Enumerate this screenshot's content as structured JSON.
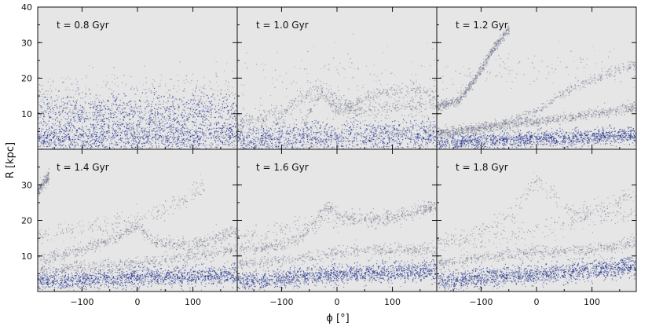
{
  "figure": {
    "xlabel": "ϕ [°]",
    "ylabel": "R [kpc]"
  },
  "colors": {
    "panel_bg": "#e6e6e6",
    "dense": "#1f2f8a",
    "sparse": "#6b6f86",
    "frame": "#111111"
  },
  "chart_data": [
    {
      "type": "scatter",
      "title": "t = 0.8 Gyr",
      "xlim": [
        -180,
        180
      ],
      "ylim": [
        0,
        40
      ],
      "xticks": [
        -100,
        0,
        100
      ],
      "yticks": [
        10,
        20,
        30,
        40
      ],
      "features": [
        {
          "kind": "band",
          "density": 2.4,
          "spread": 5,
          "points": [
            [
              -180,
              3
            ],
            [
              0,
              3.5
            ],
            [
              180,
              4
            ]
          ]
        },
        {
          "kind": "band",
          "density": 1.6,
          "spread": 6,
          "points": [
            [
              -180,
              10
            ],
            [
              0,
              10
            ],
            [
              180,
              11
            ]
          ]
        },
        {
          "kind": "band",
          "density": 0.6,
          "spread": 8,
          "points": [
            [
              -180,
              15
            ],
            [
              0,
              15
            ],
            [
              180,
              16
            ]
          ]
        }
      ]
    },
    {
      "type": "scatter",
      "title": "t = 1.0 Gyr",
      "xlim": [
        -180,
        180
      ],
      "ylim": [
        0,
        40
      ],
      "xticks": [
        -100,
        0,
        100
      ],
      "yticks": [
        10,
        20,
        30,
        40
      ],
      "features": [
        {
          "kind": "band",
          "density": 2.4,
          "spread": 5,
          "points": [
            [
              -180,
              3
            ],
            [
              0,
              3.5
            ],
            [
              180,
              4
            ]
          ]
        },
        {
          "kind": "band",
          "density": 1.0,
          "spread": 3,
          "points": [
            [
              -180,
              7
            ],
            [
              -100,
              10
            ],
            [
              -40,
              17
            ],
            [
              -20,
              16
            ],
            [
              20,
              11
            ],
            [
              100,
              12
            ],
            [
              180,
              13
            ]
          ]
        },
        {
          "kind": "band",
          "density": 0.6,
          "spread": 2,
          "points": [
            [
              -60,
              8
            ],
            [
              -30,
              16
            ],
            [
              0,
              11
            ],
            [
              80,
              16
            ],
            [
              140,
              17
            ],
            [
              180,
              16
            ]
          ]
        },
        {
          "kind": "band",
          "density": 0.2,
          "spread": 8,
          "points": [
            [
              -180,
              20
            ],
            [
              0,
              22
            ],
            [
              180,
              20
            ]
          ]
        }
      ]
    },
    {
      "type": "scatter",
      "title": "t = 1.2 Gyr",
      "xlim": [
        -180,
        180
      ],
      "ylim": [
        0,
        40
      ],
      "xticks": [
        -100,
        0,
        100
      ],
      "yticks": [
        10,
        20,
        30,
        40
      ],
      "features": [
        {
          "kind": "band",
          "density": 2.4,
          "spread": 2.5,
          "points": [
            [
              -180,
              2
            ],
            [
              0,
              3
            ],
            [
              180,
              4
            ]
          ]
        },
        {
          "kind": "band",
          "density": 1.4,
          "spread": 1.5,
          "points": [
            [
              -180,
              5
            ],
            [
              -60,
              7
            ],
            [
              0,
              8
            ],
            [
              100,
              10
            ],
            [
              180,
              12
            ]
          ]
        },
        {
          "kind": "band",
          "density": 1.0,
          "spread": 1.5,
          "points": [
            [
              -180,
              12
            ],
            [
              -140,
              14
            ],
            [
              -110,
              20
            ],
            [
              -80,
              28
            ],
            [
              -50,
              34
            ]
          ]
        },
        {
          "kind": "band",
          "density": 0.9,
          "spread": 1.5,
          "points": [
            [
              -180,
              4
            ],
            [
              -60,
              7
            ],
            [
              0,
              11
            ],
            [
              60,
              17
            ],
            [
              120,
              21
            ],
            [
              180,
              24
            ]
          ]
        },
        {
          "kind": "band",
          "density": 0.2,
          "spread": 6,
          "points": [
            [
              -180,
              20
            ],
            [
              0,
              24
            ],
            [
              180,
              22
            ]
          ]
        }
      ]
    },
    {
      "type": "scatter",
      "title": "t = 1.4 Gyr",
      "xlim": [
        -180,
        180
      ],
      "ylim": [
        0,
        40
      ],
      "xticks": [
        -100,
        0,
        100
      ],
      "yticks": [
        10,
        20,
        30,
        40
      ],
      "features": [
        {
          "kind": "band",
          "density": 2.4,
          "spread": 3,
          "points": [
            [
              -180,
              3
            ],
            [
              0,
              4
            ],
            [
              180,
              5
            ]
          ]
        },
        {
          "kind": "band",
          "density": 1.1,
          "spread": 2,
          "points": [
            [
              -180,
              9
            ],
            [
              -100,
              12
            ],
            [
              -40,
              15
            ],
            [
              0,
              19
            ],
            [
              30,
              14
            ],
            [
              100,
              13
            ],
            [
              180,
              17
            ]
          ]
        },
        {
          "kind": "band",
          "density": 0.9,
          "spread": 2,
          "points": [
            [
              -180,
              6
            ],
            [
              -100,
              7
            ],
            [
              0,
              8
            ],
            [
              100,
              10
            ],
            [
              180,
              12
            ]
          ]
        },
        {
          "kind": "band",
          "density": 0.4,
          "spread": 3,
          "points": [
            [
              -180,
              16
            ],
            [
              -90,
              18
            ],
            [
              0,
              20
            ],
            [
              70,
              25
            ],
            [
              120,
              30
            ]
          ]
        },
        {
          "kind": "band",
          "density": 0.25,
          "spread": 2,
          "points": [
            [
              -180,
              28
            ],
            [
              -160,
              33
            ]
          ]
        }
      ]
    },
    {
      "type": "scatter",
      "title": "t = 1.6 Gyr",
      "xlim": [
        -180,
        180
      ],
      "ylim": [
        0,
        40
      ],
      "xticks": [
        -100,
        0,
        100
      ],
      "yticks": [
        10,
        20,
        30,
        40
      ],
      "features": [
        {
          "kind": "band",
          "density": 2.4,
          "spread": 3,
          "points": [
            [
              -180,
              3
            ],
            [
              0,
              5
            ],
            [
              180,
              6
            ]
          ]
        },
        {
          "kind": "band",
          "density": 1.0,
          "spread": 2,
          "points": [
            [
              -180,
              12
            ],
            [
              -100,
              13
            ],
            [
              -60,
              16
            ],
            [
              -20,
              24
            ],
            [
              10,
              21
            ],
            [
              80,
              20
            ],
            [
              180,
              24
            ]
          ]
        },
        {
          "kind": "band",
          "density": 0.9,
          "spread": 2,
          "points": [
            [
              -180,
              8
            ],
            [
              -80,
              9
            ],
            [
              0,
              11
            ],
            [
              80,
              12
            ],
            [
              180,
              12
            ]
          ]
        },
        {
          "kind": "band",
          "density": 0.4,
          "spread": 3,
          "points": [
            [
              -180,
              15
            ],
            [
              -100,
              18
            ],
            [
              0,
              20
            ],
            [
              100,
              22
            ],
            [
              180,
              24
            ]
          ]
        }
      ]
    },
    {
      "type": "scatter",
      "title": "t = 1.8 Gyr",
      "xlim": [
        -180,
        180
      ],
      "ylim": [
        0,
        40
      ],
      "xticks": [
        -100,
        0,
        100
      ],
      "yticks": [
        10,
        20,
        30,
        40
      ],
      "features": [
        {
          "kind": "band",
          "density": 2.4,
          "spread": 3,
          "points": [
            [
              -180,
              3
            ],
            [
              0,
              5
            ],
            [
              180,
              7
            ]
          ]
        },
        {
          "kind": "band",
          "density": 1.0,
          "spread": 2,
          "points": [
            [
              -180,
              8
            ],
            [
              -80,
              10
            ],
            [
              0,
              11
            ],
            [
              100,
              12
            ],
            [
              180,
              14
            ]
          ]
        },
        {
          "kind": "band",
          "density": 0.5,
          "spread": 3,
          "points": [
            [
              -180,
              14
            ],
            [
              -100,
              17
            ],
            [
              -40,
              22
            ],
            [
              0,
              32
            ],
            [
              60,
              22
            ],
            [
              120,
              24
            ],
            [
              180,
              28
            ]
          ]
        },
        {
          "kind": "band",
          "density": 0.35,
          "spread": 3,
          "points": [
            [
              -180,
              13
            ],
            [
              -60,
              15
            ],
            [
              0,
              17
            ],
            [
              80,
              20
            ],
            [
              180,
              22
            ]
          ]
        }
      ]
    }
  ]
}
